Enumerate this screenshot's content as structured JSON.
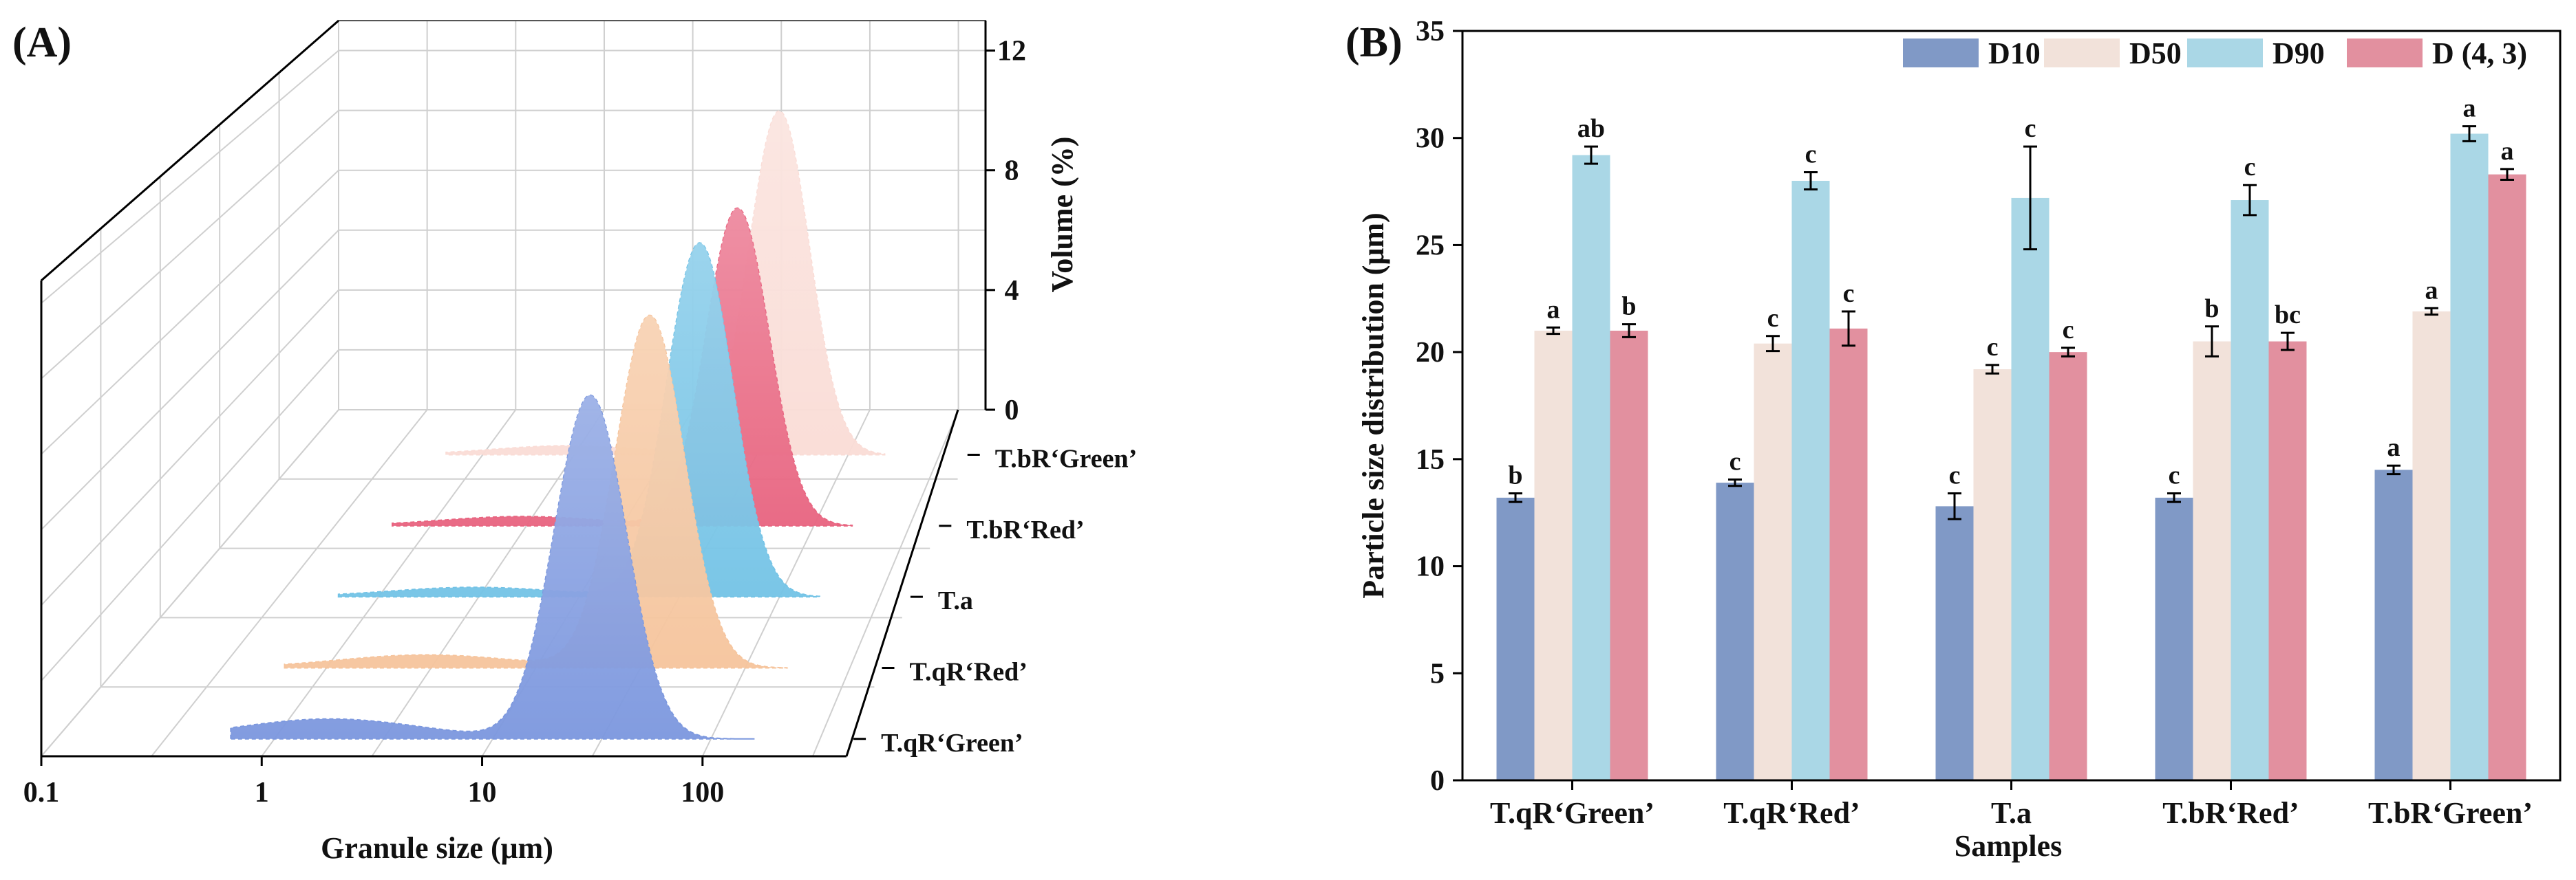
{
  "panel_a": {
    "label": "(A)",
    "chart_data": {
      "type": "area",
      "title": "",
      "xlabel": "Granule size (μm)",
      "zlabel": "Volume (%)",
      "x_scale": "log",
      "x_ticks": [
        "0.1",
        "1",
        "10",
        "100"
      ],
      "z_ticks": [
        "0",
        "4",
        "8",
        "12"
      ],
      "zlim": [
        0,
        13
      ],
      "series": [
        {
          "name": "T.qR‘Green’",
          "color": "#7b97de",
          "peak_x": 28,
          "peak_volume": 10.3,
          "minor_peak_x": 1.8,
          "minor_peak_volume": 0.6
        },
        {
          "name": "T.qR‘Red’",
          "color": "#f6c49c",
          "peak_x": 35,
          "peak_volume": 10.8,
          "minor_peak_x": 3,
          "minor_peak_volume": 0.4
        },
        {
          "name": "T.a",
          "color": "#73c3e6",
          "peak_x": 40,
          "peak_volume": 11.1,
          "minor_peak_x": 3,
          "minor_peak_volume": 0.3
        },
        {
          "name": "T.bR‘Red’",
          "color": "#e8637f",
          "peak_x": 40,
          "peak_volume": 10.2,
          "minor_peak_x": 3,
          "minor_peak_volume": 0.3
        },
        {
          "name": "T.bR‘Green’",
          "color": "#fadcd6",
          "peak_x": 42,
          "peak_volume": 11.3,
          "minor_peak_x": 3,
          "minor_peak_volume": 0.3
        }
      ]
    }
  },
  "panel_b": {
    "label": "(B)",
    "chart_data": {
      "type": "bar",
      "title": "",
      "xlabel": "Samples",
      "ylabel": "Particle size distribution (μm)",
      "ylim": [
        0,
        35
      ],
      "y_ticks": [
        "0",
        "5",
        "10",
        "15",
        "20",
        "25",
        "30",
        "35"
      ],
      "categories": [
        "T.qR‘Green’",
        "T.qR‘Red’",
        "T.a",
        "T.bR‘Red’",
        "T.bR‘Green’"
      ],
      "legend_position": "top",
      "series": [
        {
          "name": "D10",
          "color": "#8099c6",
          "values": [
            13.2,
            13.9,
            12.8,
            13.2,
            14.5
          ],
          "errors": [
            0.2,
            0.15,
            0.6,
            0.2,
            0.2
          ],
          "letters": [
            "b",
            "c",
            "c",
            "c",
            "a"
          ]
        },
        {
          "name": "D50",
          "color": "#f2e2da",
          "values": [
            21.0,
            20.4,
            19.2,
            20.5,
            21.9
          ],
          "errors": [
            0.15,
            0.35,
            0.2,
            0.7,
            0.15
          ],
          "letters": [
            "a",
            "c",
            "c",
            "b",
            "a"
          ]
        },
        {
          "name": "D90",
          "color": "#aad7e6",
          "values": [
            29.2,
            28.0,
            27.2,
            27.1,
            30.2
          ],
          "errors": [
            0.4,
            0.4,
            2.4,
            0.7,
            0.35
          ],
          "letters": [
            "ab",
            "c",
            "c",
            "c",
            "a"
          ]
        },
        {
          "name": "D (4, 3)",
          "color": "#e2909f",
          "values": [
            21.0,
            21.1,
            20.0,
            20.5,
            28.3
          ],
          "errors": [
            0.3,
            0.8,
            0.2,
            0.4,
            0.25
          ],
          "letters": [
            "b",
            "c",
            "c",
            "bc",
            "a"
          ]
        }
      ]
    }
  }
}
